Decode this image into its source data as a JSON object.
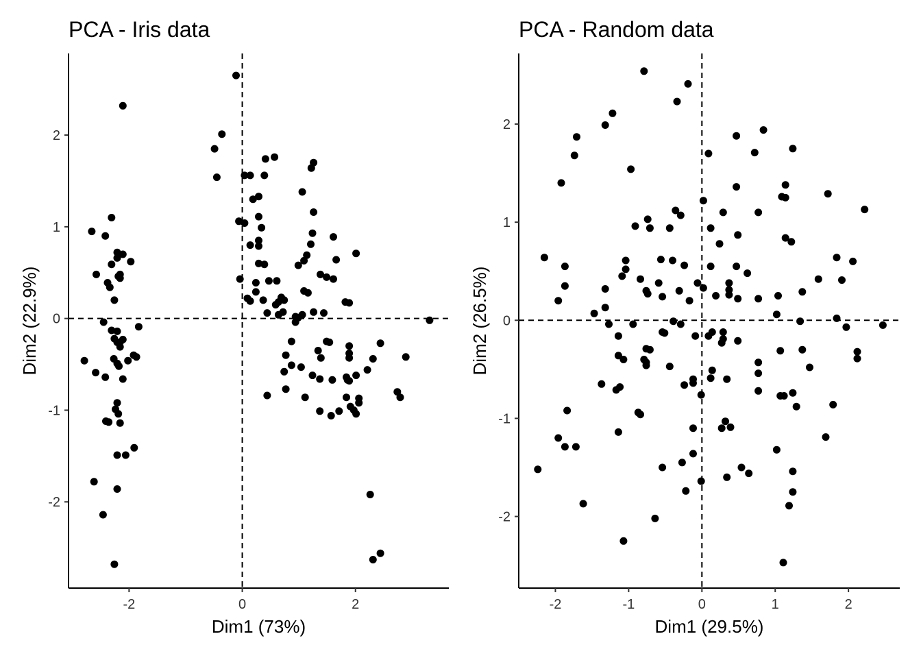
{
  "chart_data": [
    {
      "type": "scatter",
      "title": "PCA - Iris data",
      "xlabel": "Dim1 (73%)",
      "ylabel": "Dim2 (22.9%)",
      "xlim": [
        -3.07,
        3.65
      ],
      "ylim": [
        -2.94,
        2.89
      ],
      "xticks": [
        -2,
        0,
        2
      ],
      "yticks": [
        -2,
        -1,
        0,
        1,
        2
      ],
      "reference_lines": {
        "x": 0,
        "y": 0,
        "style": "dashed"
      },
      "grid": false,
      "legend": "none",
      "point_color": "#000000",
      "points": [
        [
          -2.11,
          2.32
        ],
        [
          -2.31,
          1.1
        ],
        [
          -2.66,
          0.95
        ],
        [
          -2.42,
          0.9
        ],
        [
          -2.21,
          0.72
        ],
        [
          -2.11,
          0.7
        ],
        [
          -2.21,
          0.66
        ],
        [
          -1.97,
          0.62
        ],
        [
          -2.31,
          0.59
        ],
        [
          -2.58,
          0.48
        ],
        [
          -2.16,
          0.48
        ],
        [
          -2.19,
          0.46
        ],
        [
          -2.16,
          0.44
        ],
        [
          -2.38,
          0.39
        ],
        [
          -2.34,
          0.34
        ],
        [
          -2.26,
          0.2
        ],
        [
          -2.45,
          -0.04
        ],
        [
          -2.31,
          -0.13
        ],
        [
          -2.21,
          -0.14
        ],
        [
          -2.26,
          -0.22
        ],
        [
          -1.83,
          -0.09
        ],
        [
          -2.21,
          -0.26
        ],
        [
          -2.16,
          -0.26
        ],
        [
          -2.11,
          -0.23
        ],
        [
          -2.16,
          -0.31
        ],
        [
          -1.92,
          -0.4
        ],
        [
          -1.87,
          -0.42
        ],
        [
          -2.02,
          -0.46
        ],
        [
          -2.27,
          -0.44
        ],
        [
          -2.21,
          -0.49
        ],
        [
          -2.18,
          -0.52
        ],
        [
          -2.79,
          -0.46
        ],
        [
          -2.59,
          -0.59
        ],
        [
          -2.42,
          -0.64
        ],
        [
          -2.11,
          -0.66
        ],
        [
          -2.21,
          -0.92
        ],
        [
          -2.24,
          -0.99
        ],
        [
          -2.19,
          -1.04
        ],
        [
          -2.41,
          -1.12
        ],
        [
          -2.36,
          -1.13
        ],
        [
          -2.16,
          -1.14
        ],
        [
          -1.91,
          -1.41
        ],
        [
          -2.21,
          -1.49
        ],
        [
          -2.06,
          -1.49
        ],
        [
          -2.62,
          -1.78
        ],
        [
          -2.21,
          -1.86
        ],
        [
          -2.46,
          -2.14
        ],
        [
          -2.26,
          -2.68
        ],
        [
          -0.11,
          2.65
        ],
        [
          -0.36,
          2.01
        ],
        [
          -0.49,
          1.85
        ],
        [
          -0.45,
          1.54
        ],
        [
          0.04,
          1.56
        ],
        [
          0.14,
          1.56
        ],
        [
          0.39,
          1.56
        ],
        [
          0.41,
          1.74
        ],
        [
          0.57,
          1.76
        ],
        [
          1.26,
          1.7
        ],
        [
          1.22,
          1.64
        ],
        [
          0.19,
          1.3
        ],
        [
          0.29,
          1.33
        ],
        [
          1.06,
          1.38
        ],
        [
          0.04,
          1.04
        ],
        [
          -0.06,
          1.06
        ],
        [
          0.29,
          1.11
        ],
        [
          0.34,
          0.99
        ],
        [
          1.26,
          1.16
        ],
        [
          1.24,
          0.93
        ],
        [
          0.14,
          0.8
        ],
        [
          0.29,
          0.79
        ],
        [
          1.21,
          0.81
        ],
        [
          0.29,
          0.85
        ],
        [
          0.29,
          0.6
        ],
        [
          0.39,
          0.59
        ],
        [
          1.09,
          0.63
        ],
        [
          0.99,
          0.58
        ],
        [
          1.14,
          0.69
        ],
        [
          2.01,
          0.71
        ],
        [
          1.61,
          0.89
        ],
        [
          1.66,
          0.64
        ],
        [
          -0.04,
          0.43
        ],
        [
          0.47,
          0.41
        ],
        [
          0.61,
          0.41
        ],
        [
          1.38,
          0.48
        ],
        [
          1.49,
          0.45
        ],
        [
          1.61,
          0.43
        ],
        [
          0.24,
          0.39
        ],
        [
          0.09,
          0.22
        ],
        [
          0.14,
          0.19
        ],
        [
          0.24,
          0.29
        ],
        [
          0.37,
          0.2
        ],
        [
          0.69,
          0.23
        ],
        [
          0.64,
          0.18
        ],
        [
          0.59,
          0.15
        ],
        [
          0.74,
          0.2
        ],
        [
          1.09,
          0.3
        ],
        [
          1.16,
          0.28
        ],
        [
          1.82,
          0.18
        ],
        [
          1.89,
          0.17
        ],
        [
          0.72,
          0.07
        ],
        [
          0.44,
          0.06
        ],
        [
          0.64,
          0.04
        ],
        [
          0.94,
          0.02
        ],
        [
          0.99,
          0.01
        ],
        [
          1.06,
          0.04
        ],
        [
          1.26,
          0.07
        ],
        [
          1.44,
          0.06
        ],
        [
          0.94,
          -0.04
        ],
        [
          3.31,
          -0.02
        ],
        [
          0.87,
          -0.25
        ],
        [
          1.49,
          -0.25
        ],
        [
          1.54,
          -0.26
        ],
        [
          1.89,
          -0.3
        ],
        [
          2.44,
          -0.27
        ],
        [
          1.34,
          -0.35
        ],
        [
          1.89,
          -0.38
        ],
        [
          0.77,
          -0.4
        ],
        [
          1.39,
          -0.43
        ],
        [
          1.89,
          -0.43
        ],
        [
          2.31,
          -0.44
        ],
        [
          2.89,
          -0.42
        ],
        [
          0.87,
          -0.51
        ],
        [
          1.04,
          -0.53
        ],
        [
          2.21,
          -0.56
        ],
        [
          0.74,
          -0.58
        ],
        [
          1.24,
          -0.62
        ],
        [
          1.84,
          -0.64
        ],
        [
          2.01,
          -0.62
        ],
        [
          1.37,
          -0.66
        ],
        [
          1.59,
          -0.67
        ],
        [
          1.86,
          -0.67
        ],
        [
          1.89,
          -0.68
        ],
        [
          0.77,
          -0.77
        ],
        [
          0.44,
          -0.84
        ],
        [
          1.11,
          -0.86
        ],
        [
          1.84,
          -0.86
        ],
        [
          2.06,
          -0.87
        ],
        [
          2.06,
          -0.92
        ],
        [
          2.74,
          -0.8
        ],
        [
          2.79,
          -0.86
        ],
        [
          1.91,
          -0.96
        ],
        [
          1.37,
          -1.01
        ],
        [
          1.57,
          -1.06
        ],
        [
          1.71,
          -1.01
        ],
        [
          1.97,
          -1.0
        ],
        [
          2.01,
          -1.04
        ],
        [
          2.26,
          -1.92
        ],
        [
          2.44,
          -2.56
        ],
        [
          2.31,
          -2.63
        ]
      ]
    },
    {
      "type": "scatter",
      "title": "PCA - Random data",
      "xlabel": "Dim1 (29.5%)",
      "ylabel": "Dim2 (26.5%)",
      "xlim": [
        -2.5,
        2.7
      ],
      "ylim": [
        -2.73,
        2.72
      ],
      "xticks": [
        -2,
        -1,
        0,
        1,
        2
      ],
      "yticks": [
        -2,
        -1,
        0,
        1,
        2
      ],
      "reference_lines": {
        "x": 0,
        "y": 0,
        "style": "dashed"
      },
      "grid": false,
      "legend": "none",
      "point_color": "#000000",
      "points": [
        [
          -0.79,
          2.54
        ],
        [
          -0.19,
          2.41
        ],
        [
          -0.34,
          2.23
        ],
        [
          -1.22,
          2.11
        ],
        [
          -1.32,
          1.99
        ],
        [
          -1.71,
          1.87
        ],
        [
          -1.74,
          1.68
        ],
        [
          -0.97,
          1.54
        ],
        [
          -1.92,
          1.4
        ],
        [
          0.84,
          1.94
        ],
        [
          0.47,
          1.88
        ],
        [
          0.72,
          1.71
        ],
        [
          1.24,
          1.75
        ],
        [
          0.09,
          1.7
        ],
        [
          1.72,
          1.29
        ],
        [
          1.14,
          1.38
        ],
        [
          1.09,
          1.26
        ],
        [
          1.14,
          1.25
        ],
        [
          0.47,
          1.36
        ],
        [
          2.22,
          1.13
        ],
        [
          0.29,
          1.1
        ],
        [
          0.77,
          1.1
        ],
        [
          -0.36,
          1.12
        ],
        [
          -0.29,
          1.07
        ],
        [
          -0.74,
          1.03
        ],
        [
          -0.91,
          0.96
        ],
        [
          -0.71,
          0.94
        ],
        [
          -0.44,
          0.94
        ],
        [
          0.02,
          1.22
        ],
        [
          0.12,
          0.94
        ],
        [
          0.49,
          0.87
        ],
        [
          1.14,
          0.84
        ],
        [
          1.22,
          0.8
        ],
        [
          0.24,
          0.78
        ],
        [
          -2.15,
          0.64
        ],
        [
          -0.56,
          0.62
        ],
        [
          -0.4,
          0.61
        ],
        [
          -1.04,
          0.61
        ],
        [
          1.84,
          0.64
        ],
        [
          2.06,
          0.6
        ],
        [
          -1.87,
          0.55
        ],
        [
          -1.04,
          0.52
        ],
        [
          -0.84,
          0.42
        ],
        [
          -1.09,
          0.45
        ],
        [
          -0.24,
          0.56
        ],
        [
          0.12,
          0.55
        ],
        [
          0.47,
          0.55
        ],
        [
          0.62,
          0.48
        ],
        [
          1.59,
          0.42
        ],
        [
          1.91,
          0.41
        ],
        [
          -1.87,
          0.35
        ],
        [
          -1.32,
          0.32
        ],
        [
          -0.59,
          0.38
        ],
        [
          -0.76,
          0.3
        ],
        [
          -0.74,
          0.27
        ],
        [
          -0.31,
          0.3
        ],
        [
          -0.06,
          0.38
        ],
        [
          0.02,
          0.33
        ],
        [
          0.37,
          0.38
        ],
        [
          0.37,
          0.31
        ],
        [
          0.37,
          0.26
        ],
        [
          0.19,
          0.25
        ],
        [
          0.49,
          0.22
        ],
        [
          0.77,
          0.22
        ],
        [
          1.04,
          0.25
        ],
        [
          1.37,
          0.29
        ],
        [
          -1.96,
          0.2
        ],
        [
          -0.54,
          0.24
        ],
        [
          -0.17,
          0.2
        ],
        [
          -1.47,
          0.07
        ],
        [
          -1.32,
          0.13
        ],
        [
          -1.27,
          -0.04
        ],
        [
          -0.94,
          -0.04
        ],
        [
          -0.39,
          -0.01
        ],
        [
          -0.29,
          -0.04
        ],
        [
          1.02,
          0.06
        ],
        [
          1.34,
          -0.01
        ],
        [
          1.84,
          0.02
        ],
        [
          1.97,
          -0.07
        ],
        [
          2.47,
          -0.05
        ],
        [
          -0.54,
          -0.12
        ],
        [
          -0.51,
          -0.13
        ],
        [
          -1.14,
          -0.16
        ],
        [
          -0.09,
          -0.16
        ],
        [
          0.09,
          -0.16
        ],
        [
          0.14,
          -0.12
        ],
        [
          0.29,
          -0.12
        ],
        [
          0.27,
          -0.23
        ],
        [
          0.29,
          -0.19
        ],
        [
          0.49,
          -0.21
        ],
        [
          1.07,
          -0.31
        ],
        [
          1.37,
          -0.3
        ],
        [
          2.12,
          -0.32
        ],
        [
          2.12,
          -0.39
        ],
        [
          -0.76,
          -0.29
        ],
        [
          -0.71,
          -0.3
        ],
        [
          -1.14,
          -0.36
        ],
        [
          -1.07,
          -0.4
        ],
        [
          -0.79,
          -0.4
        ],
        [
          -0.76,
          -0.43
        ],
        [
          -0.76,
          -0.46
        ],
        [
          -0.44,
          -0.47
        ],
        [
          0.14,
          -0.51
        ],
        [
          0.77,
          -0.43
        ],
        [
          0.77,
          -0.54
        ],
        [
          1.47,
          -0.48
        ],
        [
          -1.37,
          -0.65
        ],
        [
          -1.12,
          -0.68
        ],
        [
          -1.17,
          -0.71
        ],
        [
          -0.24,
          -0.66
        ],
        [
          -0.12,
          -0.64
        ],
        [
          -0.12,
          -0.6
        ],
        [
          0.12,
          -0.59
        ],
        [
          0.34,
          -0.6
        ],
        [
          0.77,
          -0.72
        ],
        [
          1.07,
          -0.77
        ],
        [
          1.12,
          -0.77
        ],
        [
          1.24,
          -0.74
        ],
        [
          -0.01,
          -0.76
        ],
        [
          1.29,
          -0.88
        ],
        [
          1.79,
          -0.86
        ],
        [
          -1.84,
          -0.92
        ],
        [
          -0.87,
          -0.94
        ],
        [
          -0.84,
          -0.96
        ],
        [
          0.32,
          -1.03
        ],
        [
          0.27,
          -1.1
        ],
        [
          0.39,
          -1.09
        ],
        [
          -0.12,
          -1.1
        ],
        [
          -1.14,
          -1.14
        ],
        [
          1.69,
          -1.19
        ],
        [
          -1.96,
          -1.2
        ],
        [
          -1.87,
          -1.29
        ],
        [
          -1.72,
          -1.29
        ],
        [
          1.02,
          -1.32
        ],
        [
          -0.12,
          -1.36
        ],
        [
          -0.27,
          -1.45
        ],
        [
          -0.54,
          -1.5
        ],
        [
          0.54,
          -1.5
        ],
        [
          -2.24,
          -1.52
        ],
        [
          0.64,
          -1.56
        ],
        [
          1.24,
          -1.54
        ],
        [
          0.34,
          -1.6
        ],
        [
          -0.01,
          -1.64
        ],
        [
          -0.22,
          -1.74
        ],
        [
          1.24,
          -1.75
        ],
        [
          -1.62,
          -1.87
        ],
        [
          1.19,
          -1.89
        ],
        [
          -0.64,
          -2.02
        ],
        [
          -1.07,
          -2.25
        ],
        [
          1.11,
          -2.47
        ]
      ]
    }
  ]
}
